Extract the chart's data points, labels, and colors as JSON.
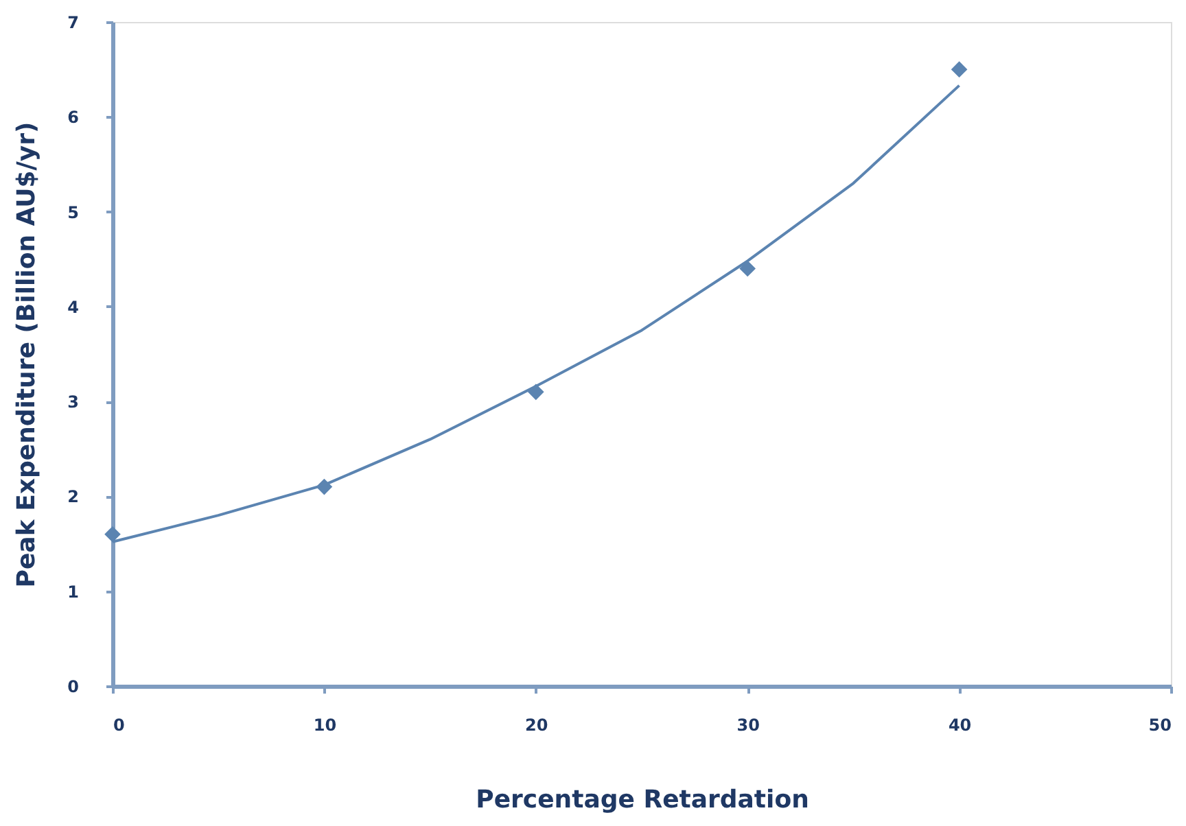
{
  "chart_data": {
    "type": "scatter",
    "xlabel": "Percentage Retardation",
    "ylabel": "Peak Expenditure (Billion AU$/yr)",
    "x": [
      0,
      10,
      20,
      30,
      40
    ],
    "series": [
      {
        "type": "scatter",
        "color": "#5b84b1",
        "marker": "diamond",
        "values": [
          1.6,
          2.1,
          3.1,
          4.4,
          6.5
        ]
      },
      {
        "type": "line",
        "color": "#5b84b1",
        "marker": "none",
        "line_style": "solid",
        "x": [
          0,
          5,
          10,
          15,
          20,
          25,
          30,
          35,
          40
        ],
        "values": [
          1.52,
          1.8,
          2.12,
          2.6,
          3.16,
          3.75,
          4.48,
          5.3,
          6.33
        ]
      }
    ],
    "xlim": [
      0,
      50
    ],
    "xticks": [
      0,
      10,
      20,
      30,
      40,
      50
    ],
    "ylim": [
      0,
      7
    ],
    "yticks": [
      0,
      1,
      2,
      3,
      4,
      5,
      6,
      7
    ],
    "grid": false
  }
}
